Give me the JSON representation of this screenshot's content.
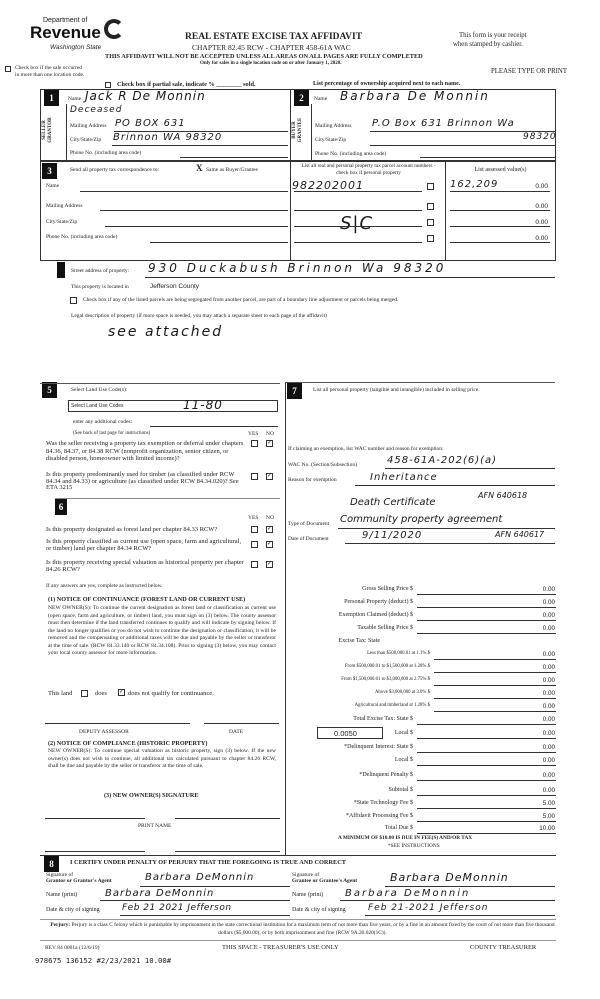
{
  "header": {
    "dept": "Department of",
    "revenue": "Revenue",
    "state": "Washington State",
    "title": "REAL ESTATE EXCISE TAX AFFIDAVIT",
    "chapter": "CHAPTER 82.45 RCW - CHAPTER 458-61A WAC",
    "warning": "THIS AFFIDAVIT WILL NOT BE ACCEPTED UNLESS ALL AREAS ON ALL PAGES ARE FULLY COMPLETED",
    "only_for": "Only for sales in a single location code on or after January 1, 2020.",
    "receipt1": "This form is your receipt",
    "receipt2": "when stamped by cashier.",
    "multi_loc1": "Check box if the sale occurred",
    "multi_loc2": "in more than one location code.",
    "please": "PLEASE TYPE OR PRINT",
    "partial": "Check box if partial sale, indicate % ________ sold.",
    "percent": "List percentage of ownership acquired next to each name."
  },
  "seller": {
    "num": "1",
    "side": "SELLER GRANTOR",
    "name_label": "Name",
    "name": "Jack R De Monnin",
    "name2": "Deceased",
    "mail_label": "Mailing Address",
    "mail": "PO BOX 631",
    "city_label": "City/State/Zip",
    "city": "Brinnon WA 98320",
    "phone_label": "Phone No. (including area code)"
  },
  "buyer": {
    "num": "2",
    "side": "BUYER GRANTEE",
    "name_label": "Name",
    "name": "Barbara De Monnin",
    "mail_label": "Mailing Address",
    "mail": "P.O Box 631 Brinnon Wa",
    "zip": "98320",
    "city_label": "City/State/Zip",
    "phone_label": "Phone No. (including area code)"
  },
  "sec3": {
    "num": "3",
    "send": "Send all property tax correspondence to:",
    "mark": "X",
    "same": "Same as Buyer/Grantee",
    "name": "Name",
    "mail": "Mailing Address",
    "city": "City/State/Zip",
    "phone": "Phone No. (including area code)",
    "parcel_hdr": "List all real and personal property tax parcel account numbers - check box if personal property",
    "assessed_hdr": "List assessed value(s)",
    "parcels": [
      "982202001",
      "",
      "",
      ""
    ],
    "assessed_hw": "162,209",
    "values": [
      "0.00",
      "0.00",
      "0.00",
      "0.00"
    ],
    "sic": "S|C"
  },
  "sec4": {
    "street_label": "Street address of property:",
    "street": "930 Duckabush Brinnon Wa 98320",
    "located": "This property is located in",
    "county": "Jefferson County",
    "segregated": "Check box if any of the listed parcels are being segregated from another parcel, are part of a boundary line adjustment or parcels being merged.",
    "legal": "Legal description of property (if more space is needed, you may attach a separate sheet to each page of the affidavit)",
    "legal_value": "see attached"
  },
  "sec5": {
    "num": "5",
    "label": "Select Land Use Code(s):",
    "select": "Select Land Use Codes",
    "code": "11-80",
    "additional": "enter any additional codes:",
    "see_back": "(See back of last page for instructions)",
    "yes": "YES",
    "no": "NO",
    "q1": "Was the seller receiving a property tax exemption or deferral under chapters 84.36, 84.37, or 84.38 RCW (nonprofit organization, senior citizen, or disabled person, homeowner with limited income)?",
    "q2": "Is this property predominantly used for timber (as classified under RCW 84.34 and 84.33) or agriculture (as classified under RCW 84.34.020)? See ETA 3215"
  },
  "sec6": {
    "num": "6",
    "q1": "Is this property designated as forest land per chapter 84.33 RCW?",
    "q2": "Is this property classified as current use (open space, farm and agricultural, or timber) land per chapter 84.34 RCW?",
    "q3": "Is this property receiving special valuation as historical property per chapter 84.26 RCW?",
    "if_yes": "If any answers are yes, complete as instructed below.",
    "n1_title": "(1) NOTICE OF CONTINUANCE (FOREST LAND OR CURRENT USE)",
    "n1_body": "NEW OWNER(S): To continue the current designation as forest land or classification as current use (open space, farm and agriculture, or timber) land, you must sign on (3) below. The county assessor must then determine if the land transferred continues to qualify and will indicate by signing below. If the land no longer qualifies or you do not wish to continue the designation or classification, it will be removed and the compensating or additional taxes will be due and payable by the seller or transferor at the time of sale. (RCW 84.33.140 or RCW 84.34.108). Prior to signing (3) below, you may contact your local county assessor for more information.",
    "this_land": "This land",
    "does": "does",
    "does_not": "does not qualify for continuance.",
    "deputy": "DEPUTY ASSESSOR",
    "date": "DATE",
    "n2_title": "(2) NOTICE OF COMPLIANCE (HISTORIC PROPERTY)",
    "n2_body": "NEW OWNER(S): To continue special valuation as historic property, sign (3) below. If the new owner(s) does not wish to continue, all additional tax calculated pursuant to chapter 84.26 RCW, shall be due and payable by the seller or transferor at the time of sale.",
    "n3": "(3) NEW OWNER(S) SIGNATURE",
    "print_name": "PRINT NAME"
  },
  "sec7": {
    "num": "7",
    "label": "List all personal property (tangible and intangible) included in selling price.",
    "claim": "If claiming an exemption, list WAC number and reason for exemption:",
    "wac_label": "WAC No. (Section/Subsection)",
    "wac": "458-61A-202(6)(a)",
    "reason_label": "Reason for exemption",
    "reason": "Inheritance",
    "doc_label": "Type of Document",
    "doc1": "Death Certificate",
    "afn1": "AFN 640618",
    "doc2": "Community property agreement",
    "date_label": "Date of Document",
    "date": "9/11/2020",
    "afn2": "AFN 640617"
  },
  "tax": {
    "rows": [
      {
        "label": "Gross Selling Price $",
        "value": "0.00"
      },
      {
        "label": "Personal Property (deduct) $",
        "value": "0.00"
      },
      {
        "label": "Exemption Claimed (deduct) $",
        "value": "0.00"
      },
      {
        "label": "Taxable Selling Price $",
        "value": "0.00"
      },
      {
        "label": "Excise Tax: State",
        "value": ""
      },
      {
        "label": "Less than $500,000.01 at 1.1% $",
        "value": "0.00"
      },
      {
        "label": "From $500,000.01 to $1,500,000 at 1.28% $",
        "value": "0.00"
      },
      {
        "label": "From $1,500,000.01 to $3,000,000 at 2.75% $",
        "value": "0.00"
      },
      {
        "label": "Above $3,000,000 at 3.0% $",
        "value": "0.00"
      },
      {
        "label": "Agricultural and timberland at 1.28% $",
        "value": "0.00"
      },
      {
        "label": "Total Excise Tax: State $",
        "value": "0.00"
      },
      {
        "label": "Local $",
        "value": "0.00"
      },
      {
        "label": "*Delinquent Interest: State $",
        "value": "0.00"
      },
      {
        "label": "Local $",
        "value": "0.00"
      },
      {
        "label": "*Delinquent Penalty $",
        "value": "0.00"
      },
      {
        "label": "Subtotal $",
        "value": "0.00"
      },
      {
        "label": "*State Technology Fee $",
        "value": "5.00"
      },
      {
        "label": "*Affidavit Processing Fee $",
        "value": "5.00"
      },
      {
        "label": "Total Due $",
        "value": "10.00"
      }
    ],
    "local_rate": "0.0050",
    "minimum": "A MINIMUM OF $10.00 IS DUE IN FEE(S) AND/OR TAX",
    "see_instr": "*SEE INSTRUCTIONS"
  },
  "sec8": {
    "num": "8",
    "certify": "I CERTIFY UNDER PENALTY OF PERJURY THAT THE FOREGOING IS TRUE AND CORRECT",
    "sig_grantor_label1": "Signature of",
    "sig_grantor_label2": "Grantor or Grantor's Agent",
    "sig_grantor": "Barbara DeMonnin",
    "sig_grantee_label1": "Signature of",
    "sig_grantee_label2": "Grantee or Grantee's Agent",
    "sig_grantee": "Barbara DeMonnin",
    "name_label": "Name (print)",
    "grantor_name": "Barbara DeMonnin",
    "grantee_name": "Barbara DeMonnin",
    "date_label": "Date & city of signing",
    "grantor_date": "Feb 21 2021 Jefferson",
    "grantee_date": "Feb 21-2021 Jefferson",
    "perjury_bold": "Perjury:",
    "perjury": "Perjury is a class C felony which is punishable by imprisonment in the state correctional institution for a maximum term of not more than five years, or by a fine in an amount fixed by the court of not more than five thousand dollars ($5,000.00), or by both imprisonment and fine (RCW 9A.20.020(1C))."
  },
  "footer": {
    "rev": "REV 84 0001a (12/6/19)",
    "treasurer_space": "THIS SPACE - TREASURER'S USE ONLY",
    "county": "COUNTY TREASURER",
    "stamp": "978675 136152 #2/23/2021 10.00#"
  }
}
